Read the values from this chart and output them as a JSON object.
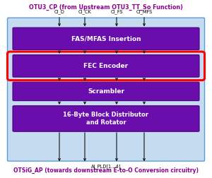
{
  "title_top": "OTU3_CP (from Upstream OTU3_TT_So Function)",
  "title_bottom": "OTSiG_AP (towards downstream E-to-O Conversion circuitry)",
  "title_color": "#8B008B",
  "input_labels": [
    "CI_D",
    "CI_CK",
    "CI_FS",
    "CI_MFS"
  ],
  "output_label": "AI_PLD[1...4]",
  "blocks": [
    {
      "label": "FAS/MFAS Insertion",
      "color": "#6A0DAD",
      "highlight": false
    },
    {
      "label": "FEC Encoder",
      "color": "#6A0DAD",
      "highlight": true
    },
    {
      "label": "Scrambler",
      "color": "#6A0DAD",
      "highlight": false
    },
    {
      "label": "16-Byte Block Distributor\nand Rotator",
      "color": "#6A0DAD",
      "highlight": false
    }
  ],
  "outer_box_facecolor": "#C5DCF0",
  "outer_box_edgecolor": "#5B9BD5",
  "arrow_color": "#111111",
  "highlight_color": "#FF0000",
  "bg_color": "#FFFFFF",
  "fig_w": 3.0,
  "fig_h": 2.52,
  "dpi": 100
}
